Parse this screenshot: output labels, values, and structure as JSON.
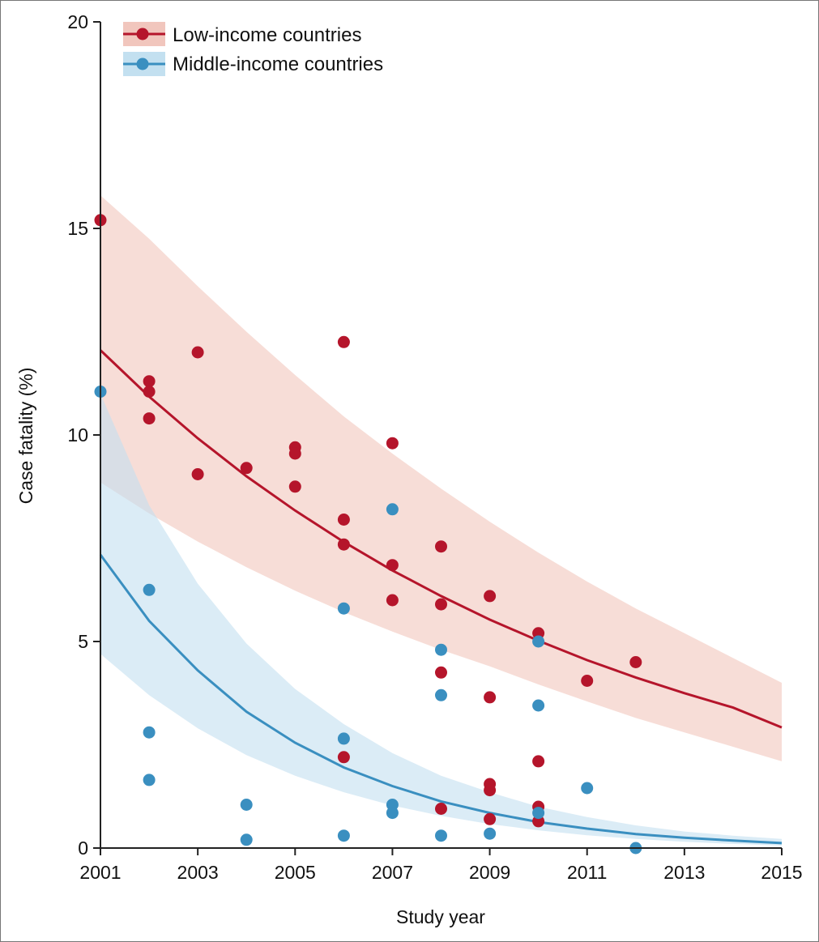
{
  "chart_data": {
    "type": "scatter",
    "title": "",
    "xlabel": "Study year",
    "ylabel": "Case fatality (%)",
    "xlim": [
      2001,
      2015
    ],
    "ylim": [
      0,
      20
    ],
    "x_ticks": [
      2001,
      2003,
      2005,
      2007,
      2009,
      2011,
      2013,
      2015
    ],
    "y_ticks": [
      0,
      5,
      10,
      15,
      20
    ],
    "grid": false,
    "legend_position": "top-left",
    "series": [
      {
        "name": "Low-income countries",
        "color": "#b5152b",
        "band_color": "#f1c6bd",
        "points": [
          [
            2001,
            15.2
          ],
          [
            2002,
            11.3
          ],
          [
            2002,
            11.05
          ],
          [
            2002,
            10.4
          ],
          [
            2003,
            12.0
          ],
          [
            2003,
            9.05
          ],
          [
            2004,
            9.2
          ],
          [
            2005,
            9.7
          ],
          [
            2005,
            9.55
          ],
          [
            2005,
            8.75
          ],
          [
            2006,
            12.25
          ],
          [
            2006,
            7.95
          ],
          [
            2006,
            7.35
          ],
          [
            2006,
            2.2
          ],
          [
            2007,
            9.8
          ],
          [
            2007,
            6.85
          ],
          [
            2007,
            6.0
          ],
          [
            2008,
            7.3
          ],
          [
            2008,
            5.9
          ],
          [
            2008,
            4.25
          ],
          [
            2008,
            0.95
          ],
          [
            2009,
            6.1
          ],
          [
            2009,
            3.65
          ],
          [
            2009,
            1.55
          ],
          [
            2009,
            1.4
          ],
          [
            2009,
            0.7
          ],
          [
            2010,
            5.2
          ],
          [
            2010,
            2.1
          ],
          [
            2010,
            1.0
          ],
          [
            2010,
            0.65
          ],
          [
            2011,
            4.05
          ],
          [
            2012,
            4.5
          ]
        ],
        "fit": {
          "x": [
            2001,
            2002,
            2003,
            2004,
            2005,
            2006,
            2007,
            2008,
            2009,
            2010,
            2011,
            2012,
            2013,
            2014,
            2015
          ],
          "y": [
            12.05,
            10.93,
            9.92,
            9.0,
            8.17,
            7.41,
            6.72,
            6.1,
            5.53,
            5.02,
            4.55,
            4.13,
            3.75,
            3.4,
            2.92
          ],
          "lower": [
            8.85,
            8.1,
            7.42,
            6.8,
            6.23,
            5.71,
            5.24,
            4.8,
            4.4,
            3.96,
            3.55,
            3.15,
            2.8,
            2.45,
            2.1
          ],
          "upper": [
            15.8,
            14.75,
            13.6,
            12.5,
            11.45,
            10.45,
            9.55,
            8.7,
            7.9,
            7.15,
            6.45,
            5.8,
            5.2,
            4.6,
            4.0
          ]
        }
      },
      {
        "name": "Middle-income countries",
        "color": "#3a8fc0",
        "band_color": "#c3e0f0",
        "points": [
          [
            2001,
            11.05
          ],
          [
            2002,
            6.25
          ],
          [
            2002,
            2.8
          ],
          [
            2002,
            1.65
          ],
          [
            2004,
            1.05
          ],
          [
            2004,
            0.2
          ],
          [
            2006,
            5.8
          ],
          [
            2006,
            2.65
          ],
          [
            2006,
            0.3
          ],
          [
            2007,
            8.2
          ],
          [
            2007,
            1.05
          ],
          [
            2007,
            0.85
          ],
          [
            2008,
            4.8
          ],
          [
            2008,
            3.7
          ],
          [
            2008,
            0.3
          ],
          [
            2009,
            0.35
          ],
          [
            2010,
            5.0
          ],
          [
            2010,
            3.45
          ],
          [
            2010,
            0.85
          ],
          [
            2011,
            1.45
          ],
          [
            2012,
            0.0
          ]
        ],
        "fit": {
          "x": [
            2001,
            2002,
            2003,
            2004,
            2005,
            2006,
            2007,
            2008,
            2009,
            2010,
            2011,
            2012,
            2013,
            2014,
            2015
          ],
          "y": [
            7.1,
            5.5,
            4.3,
            3.3,
            2.55,
            1.95,
            1.5,
            1.13,
            0.85,
            0.63,
            0.47,
            0.34,
            0.25,
            0.18,
            0.12
          ],
          "lower": [
            4.7,
            3.7,
            2.9,
            2.25,
            1.75,
            1.35,
            1.03,
            0.78,
            0.58,
            0.43,
            0.31,
            0.22,
            0.15,
            0.1,
            0.06
          ],
          "upper": [
            11.0,
            8.3,
            6.4,
            4.95,
            3.85,
            3.0,
            2.3,
            1.75,
            1.35,
            1.0,
            0.75,
            0.55,
            0.4,
            0.3,
            0.22
          ]
        }
      }
    ]
  }
}
